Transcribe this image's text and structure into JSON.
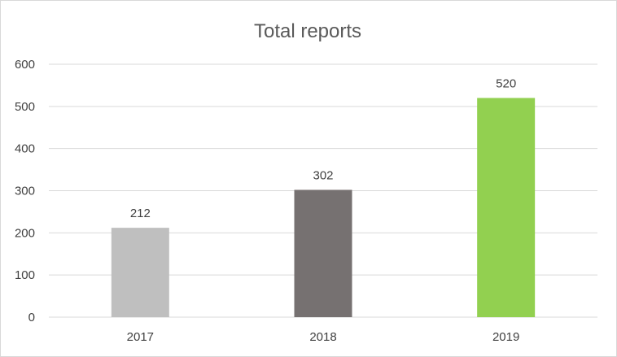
{
  "chart_data": {
    "type": "bar",
    "title": "Total reports",
    "xlabel": "",
    "ylabel": "",
    "categories": [
      "2017",
      "2018",
      "2019"
    ],
    "values": [
      212,
      302,
      520
    ],
    "data_labels": [
      "212",
      "302",
      "520"
    ],
    "colors": [
      "#bfbfbf",
      "#767171",
      "#92d050"
    ],
    "ylim": [
      0,
      600
    ],
    "y_ticks": [
      0,
      100,
      200,
      300,
      400,
      500,
      600
    ],
    "y_tick_labels": [
      "0",
      "100",
      "200",
      "300",
      "400",
      "500",
      "600"
    ],
    "grid": true,
    "legend": "none"
  }
}
